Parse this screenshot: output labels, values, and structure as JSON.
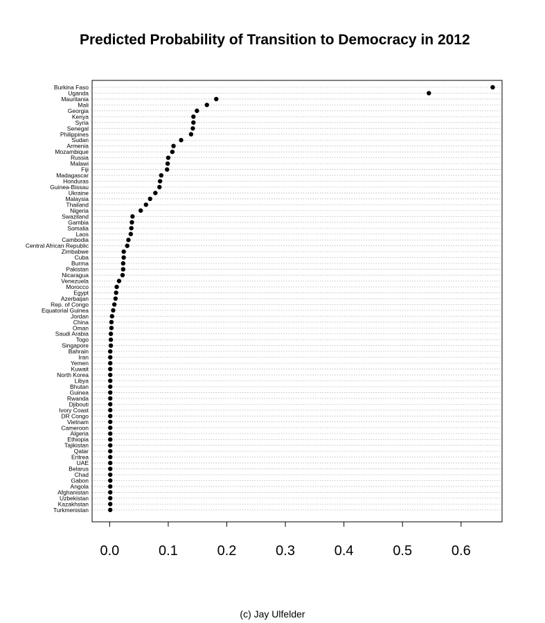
{
  "chart_data": {
    "type": "scatter",
    "title": "Predicted Probability of Transition to Democracy in 2012",
    "xlabel": "",
    "ylabel": "",
    "xlim": [
      -0.03,
      0.67
    ],
    "x_ticks": [
      0.0,
      0.1,
      0.2,
      0.3,
      0.4,
      0.5,
      0.6
    ],
    "x_tick_labels": [
      "0.0",
      "0.1",
      "0.2",
      "0.3",
      "0.4",
      "0.5",
      "0.6"
    ],
    "grid": "horizontal dotted",
    "marker_color": "#000000",
    "categories": [
      "Burkina Faso",
      "Uganda",
      "Mauritania",
      "Mali",
      "Georgia",
      "Kenya",
      "Syria",
      "Senegal",
      "Philippines",
      "Sudan",
      "Armenia",
      "Mozambique",
      "Russia",
      "Malawi",
      "Fiji",
      "Madagascar",
      "Honduras",
      "Guinea-Bissau",
      "Ukraine",
      "Malaysia",
      "Thailand",
      "Nigeria",
      "Swaziland",
      "Gambia",
      "Somalia",
      "Laos",
      "Cambodia",
      "Central African Republic",
      "Zimbabwe",
      "Cuba",
      "Burma",
      "Pakistan",
      "Nicaragua",
      "Venezuela",
      "Morocco",
      "Egypt",
      "Azerbaijan",
      "Rep. of Congo",
      "Equatorial Guinea",
      "Jordan",
      "China",
      "Oman",
      "Saudi Arabia",
      "Togo",
      "Singapore",
      "Bahrain",
      "Iran",
      "Yemen",
      "Kuwait",
      "North Korea",
      "Libya",
      "Bhutan",
      "Guinea",
      "Rwanda",
      "Djibouti",
      "Ivory Coast",
      "DR Congo",
      "Vietnam",
      "Cameroon",
      "Algeria",
      "Ethiopia",
      "Tajikistan",
      "Qatar",
      "Eritrea",
      "UAE",
      "Belarus",
      "Chad",
      "Gabon",
      "Angola",
      "Afghanistan",
      "Uzbekistan",
      "Kazakhstan",
      "Turkmenistan"
    ],
    "values": [
      0.654,
      0.545,
      0.182,
      0.166,
      0.149,
      0.143,
      0.143,
      0.142,
      0.139,
      0.122,
      0.109,
      0.107,
      0.1,
      0.099,
      0.098,
      0.088,
      0.086,
      0.085,
      0.078,
      0.069,
      0.062,
      0.053,
      0.039,
      0.038,
      0.037,
      0.036,
      0.032,
      0.03,
      0.024,
      0.024,
      0.023,
      0.023,
      0.022,
      0.016,
      0.012,
      0.011,
      0.01,
      0.008,
      0.006,
      0.004,
      0.003,
      0.003,
      0.002,
      0.002,
      0.002,
      0.001,
      0.001,
      0.001,
      0.001,
      0.001,
      0.001,
      0.001,
      0.001,
      0.001,
      0.001,
      0.001,
      0.001,
      0.001,
      0.001,
      0.001,
      0.001,
      0.001,
      0.001,
      0.001,
      0.001,
      0.001,
      0.001,
      0.001,
      0.001,
      0.001,
      0.001,
      0.001,
      0.001
    ]
  },
  "credit": "(c) Jay Ulfelder"
}
